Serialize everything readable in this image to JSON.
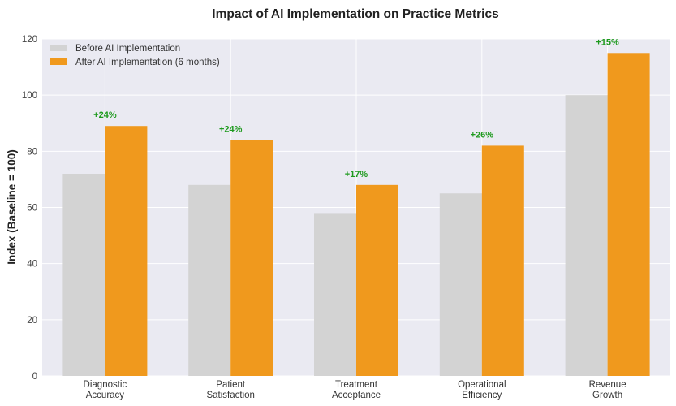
{
  "chart_data": {
    "type": "bar",
    "title": "Impact of AI Implementation on Practice Metrics",
    "xlabel": "",
    "ylabel": "Index (Baseline = 100)",
    "ylim": [
      0,
      120
    ],
    "yticks": [
      0,
      20,
      40,
      60,
      80,
      100,
      120
    ],
    "grid": true,
    "legend_position": "top-left",
    "categories": [
      [
        "Diagnostic",
        "Accuracy"
      ],
      [
        "Patient",
        "Satisfaction"
      ],
      [
        "Treatment",
        "Acceptance"
      ],
      [
        "Operational",
        "Efficiency"
      ],
      [
        "Revenue",
        "Growth"
      ]
    ],
    "series": [
      {
        "name": "Before AI Implementation",
        "color": "#d3d3d3",
        "values": [
          72,
          68,
          58,
          65,
          100
        ]
      },
      {
        "name": "After AI Implementation (6 months)",
        "color": "#f0991d",
        "values": [
          89,
          84,
          68,
          82,
          115
        ]
      }
    ],
    "annotations": [
      "+24%",
      "+24%",
      "+17%",
      "+26%",
      "+15%"
    ],
    "annotation_color": "#1e9a1e",
    "background_color": "#eaeaf2"
  }
}
